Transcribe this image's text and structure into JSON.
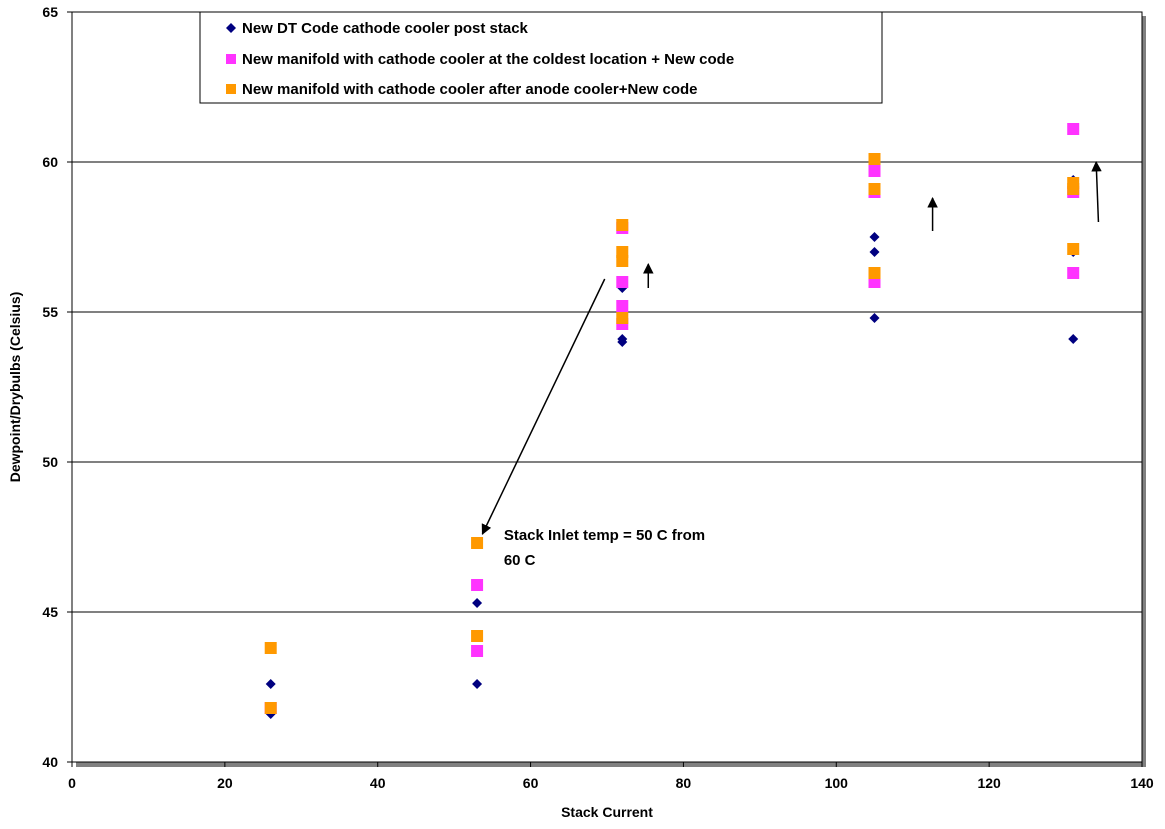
{
  "chart_data": {
    "type": "scatter",
    "title": "",
    "xlabel": "Stack Current",
    "ylabel": "Dewpoint/Drybulbs (Celsius)",
    "xlim": [
      0,
      140
    ],
    "ylim": [
      40,
      65
    ],
    "x_ticks": [
      0,
      20,
      40,
      60,
      80,
      100,
      120,
      140
    ],
    "y_ticks": [
      40,
      45,
      50,
      55,
      60,
      65
    ],
    "grid": "horizontal",
    "legend_position": "top-left",
    "series": [
      {
        "name": "New DT Code cathode cooler post stack",
        "marker": "diamond",
        "color": "#000080",
        "points": [
          [
            26,
            41.6
          ],
          [
            26,
            42.6
          ],
          [
            53,
            42.6
          ],
          [
            53,
            45.3
          ],
          [
            72,
            54.0
          ],
          [
            72,
            54.1
          ],
          [
            72,
            55.8
          ],
          [
            105,
            54.8
          ],
          [
            105,
            57.0
          ],
          [
            105,
            57.5
          ],
          [
            131,
            54.1
          ],
          [
            131,
            57.0
          ],
          [
            131,
            59.4
          ]
        ]
      },
      {
        "name": "New manifold with cathode cooler at the coldest location + New code",
        "marker": "square",
        "color": "#ff33ff",
        "points": [
          [
            26,
            41.8
          ],
          [
            53,
            43.7
          ],
          [
            53,
            45.9
          ],
          [
            72,
            54.6
          ],
          [
            72,
            55.2
          ],
          [
            72,
            56.0
          ],
          [
            72,
            57.8
          ],
          [
            105,
            56.0
          ],
          [
            105,
            59.0
          ],
          [
            105,
            59.7
          ],
          [
            131,
            56.3
          ],
          [
            131,
            59.0
          ],
          [
            131,
            61.1
          ]
        ]
      },
      {
        "name": "New manifold with cathode cooler after anode cooler+New code",
        "marker": "square",
        "color": "#ff9900",
        "points": [
          [
            26,
            41.8
          ],
          [
            26,
            43.8
          ],
          [
            53,
            44.2
          ],
          [
            53,
            47.3
          ],
          [
            72,
            54.8
          ],
          [
            72,
            56.7
          ],
          [
            72,
            57.0
          ],
          [
            72,
            57.9
          ],
          [
            105,
            56.3
          ],
          [
            105,
            59.1
          ],
          [
            105,
            60.1
          ],
          [
            131,
            57.1
          ],
          [
            131,
            59.1
          ],
          [
            131,
            59.3
          ]
        ]
      }
    ],
    "annotations": [
      {
        "text_lines": [
          "Stack Inlet temp = 50 C from",
          "60 C"
        ],
        "text_at": [
          56.5,
          47.4
        ],
        "arrow_from": [
          69.7,
          56.1
        ],
        "arrow_to": [
          53.7,
          47.6
        ]
      }
    ],
    "arrows": [
      {
        "from": [
          75.4,
          55.8
        ],
        "to": [
          75.4,
          56.6
        ]
      },
      {
        "from": [
          112.6,
          57.7
        ],
        "to": [
          112.6,
          58.8
        ]
      },
      {
        "from": [
          134.3,
          58.0
        ],
        "to": [
          134.0,
          60.0
        ]
      }
    ]
  }
}
